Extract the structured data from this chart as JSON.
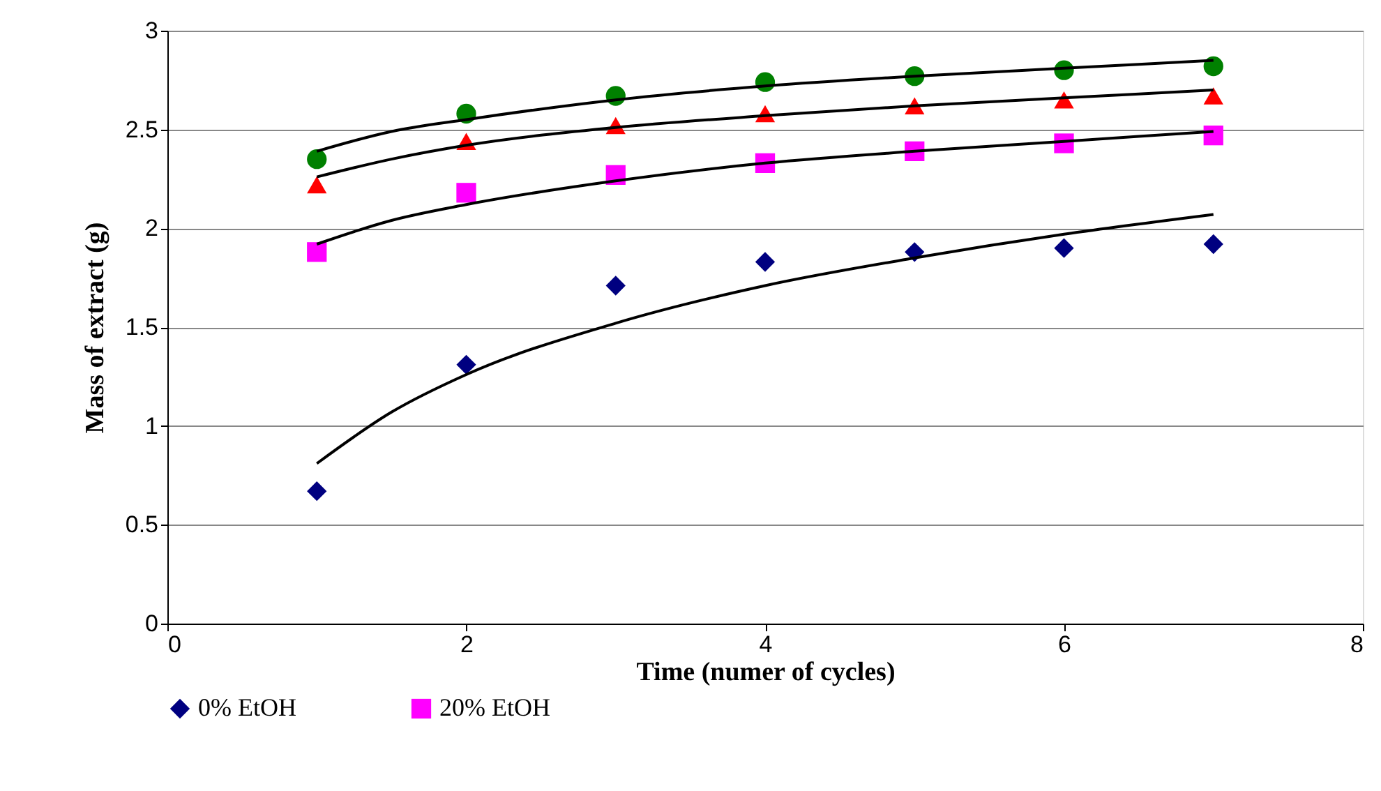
{
  "chart_data": {
    "type": "scatter",
    "xlabel": "Time (numer of cycles)",
    "ylabel": "Mass of extract (g)",
    "x": [
      1,
      2,
      3,
      4,
      5,
      6,
      7
    ],
    "series": [
      {
        "name": "0% EtOH",
        "color": "#000080",
        "marker": "diamond",
        "values": [
          0.67,
          1.31,
          1.71,
          1.83,
          1.88,
          1.9,
          1.92
        ]
      },
      {
        "name": "20% EtOH",
        "color": "#ff00ff",
        "marker": "square",
        "values": [
          1.88,
          2.18,
          2.27,
          2.33,
          2.39,
          2.43,
          2.47
        ]
      },
      {
        "color": "#ff0000",
        "marker": "triangle",
        "values": [
          2.22,
          2.44,
          2.52,
          2.58,
          2.62,
          2.65,
          2.67
        ]
      },
      {
        "color": "#008000",
        "marker": "circle",
        "values": [
          2.35,
          2.58,
          2.67,
          2.74,
          2.77,
          2.8,
          2.82
        ]
      },
      {
        "type": "line",
        "color": "#000000",
        "marker": "none",
        "x": [
          1,
          1.5,
          2,
          3,
          4,
          5,
          6,
          7
        ],
        "values": [
          0.81,
          1.07,
          1.26,
          1.52,
          1.71,
          1.85,
          1.97,
          2.07
        ]
      },
      {
        "type": "line",
        "color": "#000000",
        "marker": "none",
        "x": [
          1,
          1.5,
          2,
          3,
          4,
          5,
          6,
          7
        ],
        "values": [
          1.92,
          2.04,
          2.12,
          2.24,
          2.33,
          2.39,
          2.44,
          2.49
        ]
      },
      {
        "type": "line",
        "color": "#000000",
        "marker": "none",
        "x": [
          1,
          1.5,
          2,
          3,
          4,
          5,
          6,
          7
        ],
        "values": [
          2.26,
          2.35,
          2.42,
          2.51,
          2.57,
          2.62,
          2.66,
          2.7
        ]
      },
      {
        "type": "line",
        "color": "#000000",
        "marker": "none",
        "x": [
          1,
          1.5,
          2,
          3,
          4,
          5,
          6,
          7
        ],
        "values": [
          2.39,
          2.49,
          2.55,
          2.65,
          2.72,
          2.77,
          2.81,
          2.85
        ]
      }
    ],
    "xlim": [
      0,
      8
    ],
    "xticks": [
      0,
      2,
      4,
      6,
      8
    ],
    "ylim": [
      0,
      3
    ],
    "yticks": [
      0,
      0.5,
      1,
      1.5,
      2,
      2.5,
      3
    ],
    "grid": "y",
    "legend": "bottom"
  }
}
